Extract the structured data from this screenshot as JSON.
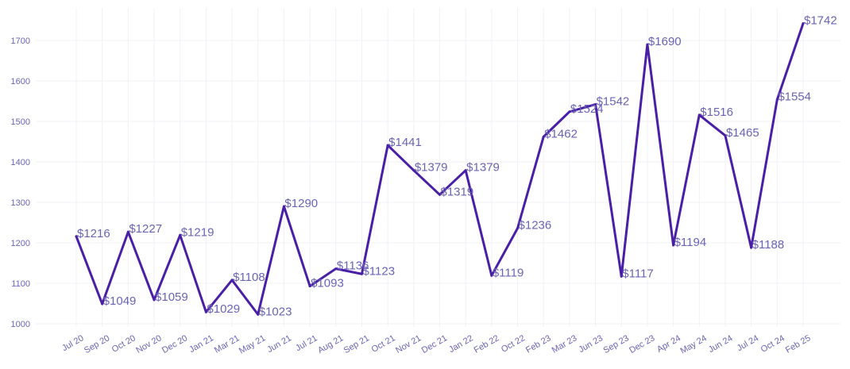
{
  "chart_data": {
    "type": "line",
    "title": "",
    "xlabel": "",
    "ylabel": "",
    "ylim": [
      985,
      1760
    ],
    "yticks": [
      1000,
      1100,
      1200,
      1300,
      1400,
      1500,
      1600,
      1700
    ],
    "grid": true,
    "legend": "none",
    "value_prefix": "$",
    "colors": {
      "line": "#4a1fa8",
      "text": "#6b63b5",
      "grid": "#f1f1f6"
    },
    "categories": [
      "Jul 20",
      "Sep 20",
      "Oct 20",
      "Nov 20",
      "Dec 20",
      "Jan 21",
      "Mar 21",
      "May 21",
      "Jun 21",
      "Jul 21",
      "Aug 21",
      "Sep 21",
      "Oct 21",
      "Nov 21",
      "Dec 21",
      "Jan 22",
      "Feb 22",
      "Oct 22",
      "Feb 23",
      "Mar 23",
      "Jun 23",
      "Sep 23",
      "Dec 23",
      "Apr 24",
      "May 24",
      "Jun 24",
      "Jul 24",
      "Oct 24",
      "Feb 25"
    ],
    "series": [
      {
        "values": [
          1216,
          1049,
          1227,
          1059,
          1219,
          1029,
          1108,
          1023,
          1290,
          1093,
          1136,
          1123,
          1441,
          1379,
          1319,
          1379,
          1119,
          1236,
          1462,
          1524,
          1542,
          1117,
          1690,
          1194,
          1516,
          1465,
          1188,
          1554,
          1742
        ]
      }
    ]
  }
}
